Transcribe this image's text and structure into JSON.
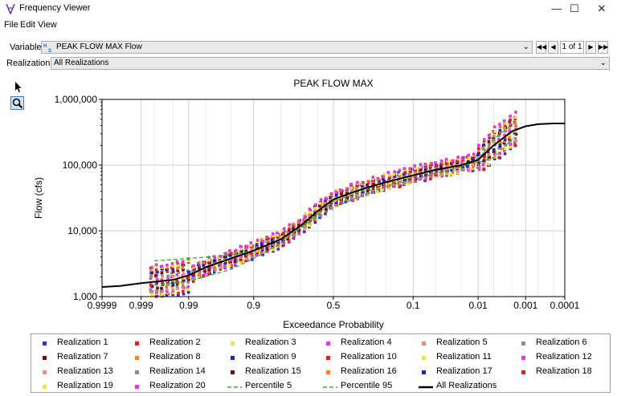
{
  "window": {
    "title": "Frequency Viewer"
  },
  "menu": [
    "File",
    "Edit",
    "View"
  ],
  "variable": {
    "label": "Variable:",
    "value": "PEAK FLOW MAX Flow",
    "page": "1 of 1"
  },
  "realization": {
    "label": "Realization:",
    "value": "All Realizations"
  },
  "icons": {
    "app": "hec-logo-icon",
    "pointer": "pointer-tool-icon",
    "zoom": "zoom-tool-icon",
    "variable": "hs-variable-icon"
  },
  "chart_data": {
    "type": "scatter",
    "title": "PEAK FLOW MAX",
    "xlabel": "Exceedance Probability",
    "ylabel": "Flow (cfs)",
    "x_scale": "normal-probability",
    "y_scale": "log",
    "xlim": [
      0.9999,
      0.0001
    ],
    "ylim": [
      1000,
      1000000
    ],
    "x_ticks": [
      0.9999,
      0.999,
      0.99,
      0.9,
      0.5,
      0.1,
      0.01,
      0.001,
      0.0001
    ],
    "x_tick_labels": [
      "0.9999",
      "0.999",
      "0.99",
      "0.9",
      "0.5",
      "0.1",
      "0.01",
      "0.001",
      "0.0001"
    ],
    "y_ticks": [
      1000,
      10000,
      100000,
      1000000
    ],
    "y_tick_labels": [
      "1,000",
      "10,000",
      "100,000",
      "1,000,000"
    ],
    "grid": true,
    "legend_position": "bottom",
    "all_realizations": {
      "x": [
        0.9999,
        0.9997,
        0.999,
        0.995,
        0.99,
        0.98,
        0.95,
        0.9,
        0.8,
        0.7,
        0.6,
        0.5,
        0.4,
        0.3,
        0.2,
        0.1,
        0.05,
        0.02,
        0.01,
        0.005,
        0.002,
        0.001,
        0.0005,
        0.0002,
        0.0001
      ],
      "y": [
        1400,
        1450,
        1600,
        1800,
        2100,
        2800,
        3800,
        5000,
        7500,
        12000,
        20000,
        30000,
        37000,
        45000,
        55000,
        70000,
        85000,
        100000,
        120000,
        200000,
        330000,
        390000,
        420000,
        430000,
        430000
      ]
    },
    "percentile_5": {
      "x": [
        0.998,
        0.99,
        0.95,
        0.9,
        0.8,
        0.5,
        0.2,
        0.1,
        0.05,
        0.02,
        0.01,
        0.005,
        0.002
      ],
      "y": [
        3500,
        3800,
        4300,
        5000,
        7500,
        23000,
        47000,
        60000,
        75000,
        95000,
        120000,
        250000,
        420000
      ]
    },
    "percentile_95": {
      "x": [
        0.998,
        0.99,
        0.95,
        0.9,
        0.8,
        0.5,
        0.2,
        0.1,
        0.05,
        0.02,
        0.01,
        0.005,
        0.002
      ],
      "y": [
        1500,
        1700,
        2600,
        3800,
        6500,
        28000,
        56000,
        70000,
        85000,
        100000,
        110000,
        130000,
        250000
      ]
    },
    "series": [
      {
        "name": "Realization 1",
        "color": "#2a35c9",
        "marker": "square"
      },
      {
        "name": "Realization 2",
        "color": "#d62525",
        "marker": "square"
      },
      {
        "name": "Realization 3",
        "color": "#f0e62a",
        "marker": "square"
      },
      {
        "name": "Realization 4",
        "color": "#e534e5",
        "marker": "square"
      },
      {
        "name": "Realization 5",
        "color": "#f08a7a",
        "marker": "square"
      },
      {
        "name": "Realization 6",
        "color": "#8c8c8c",
        "marker": "square"
      },
      {
        "name": "Realization 7",
        "color": "#6b1010",
        "marker": "square"
      },
      {
        "name": "Realization 8",
        "color": "#e8862a",
        "marker": "square"
      },
      {
        "name": "Realization 9",
        "color": "#1a2ab8",
        "marker": "square"
      },
      {
        "name": "Realization 10",
        "color": "#d62525",
        "marker": "square"
      },
      {
        "name": "Realization 11",
        "color": "#f0e62a",
        "marker": "square"
      },
      {
        "name": "Realization 12",
        "color": "#e534e5",
        "marker": "square"
      },
      {
        "name": "Realization 13",
        "color": "#f08a7a",
        "marker": "square"
      },
      {
        "name": "Realization 14",
        "color": "#8c8c8c",
        "marker": "square"
      },
      {
        "name": "Realization 15",
        "color": "#6b1010",
        "marker": "square"
      },
      {
        "name": "Realization 16",
        "color": "#e8862a",
        "marker": "square"
      },
      {
        "name": "Realization 17",
        "color": "#1a2ab8",
        "marker": "square"
      },
      {
        "name": "Realization 18",
        "color": "#d62525",
        "marker": "square"
      },
      {
        "name": "Realization 19",
        "color": "#f0e62a",
        "marker": "square"
      },
      {
        "name": "Realization 20",
        "color": "#e534e5",
        "marker": "square"
      },
      {
        "name": "Percentile 5",
        "color": "#3aaa35",
        "marker": "dashed-line"
      },
      {
        "name": "Percentile 95",
        "color": "#3aaa35",
        "marker": "dashed-line"
      },
      {
        "name": "All Realizations",
        "color": "#000000",
        "marker": "line"
      }
    ]
  }
}
